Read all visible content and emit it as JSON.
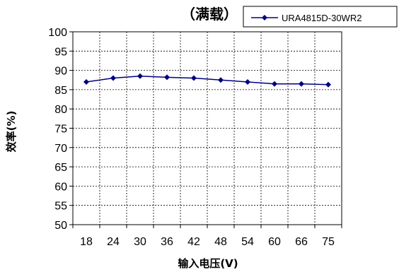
{
  "chart_data": {
    "type": "line",
    "title": "（满载）",
    "xlabel": "输入电压(V)",
    "ylabel": "效率(%)",
    "categories": [
      "18",
      "24",
      "30",
      "36",
      "42",
      "48",
      "54",
      "60",
      "66",
      "75"
    ],
    "ylim": [
      50,
      100
    ],
    "yticks": [
      "50",
      "55",
      "60",
      "65",
      "70",
      "75",
      "80",
      "85",
      "90",
      "95",
      "100"
    ],
    "grid": true,
    "legend": "top-right",
    "series": [
      {
        "name": "URA4815D-30WR2",
        "values": [
          87.0,
          88.0,
          88.5,
          88.2,
          88.0,
          87.5,
          87.0,
          86.5,
          86.5,
          86.3
        ],
        "color": "#000080",
        "marker": "diamond"
      }
    ]
  }
}
